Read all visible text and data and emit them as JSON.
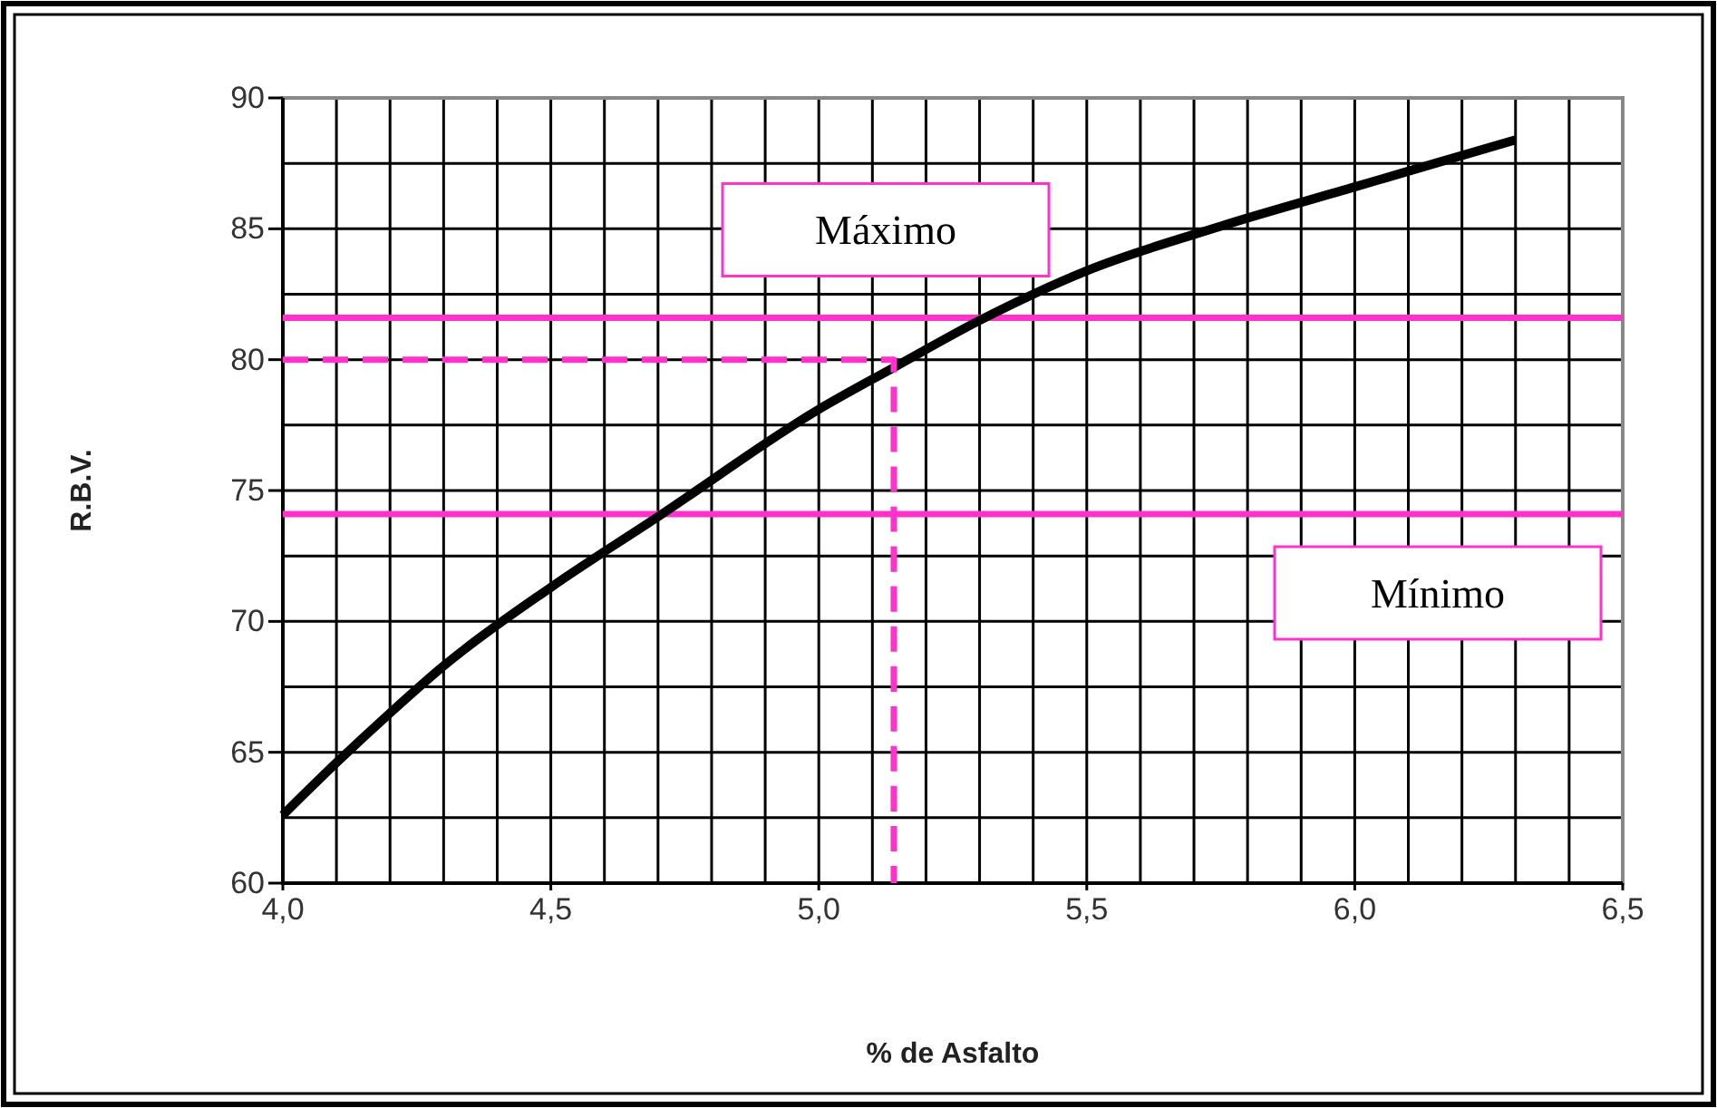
{
  "chart_data": {
    "type": "line",
    "xlabel": "% de Asfalto",
    "ylabel": "R.B.V.",
    "xlim": [
      4.0,
      6.5
    ],
    "ylim": [
      60,
      90
    ],
    "xticks": [
      {
        "value": 4.0,
        "label": "4,0"
      },
      {
        "value": 4.1,
        "label": null
      },
      {
        "value": 4.2,
        "label": null
      },
      {
        "value": 4.3,
        "label": null
      },
      {
        "value": 4.4,
        "label": null
      },
      {
        "value": 4.5,
        "label": "4,5"
      },
      {
        "value": 4.6,
        "label": null
      },
      {
        "value": 4.7,
        "label": null
      },
      {
        "value": 4.8,
        "label": null
      },
      {
        "value": 4.9,
        "label": null
      },
      {
        "value": 5.0,
        "label": "5,0"
      },
      {
        "value": 5.1,
        "label": null
      },
      {
        "value": 5.2,
        "label": null
      },
      {
        "value": 5.3,
        "label": null
      },
      {
        "value": 5.4,
        "label": null
      },
      {
        "value": 5.5,
        "label": "5,5"
      },
      {
        "value": 5.6,
        "label": null
      },
      {
        "value": 5.7,
        "label": null
      },
      {
        "value": 5.8,
        "label": null
      },
      {
        "value": 5.9,
        "label": null
      },
      {
        "value": 6.0,
        "label": "6,0"
      },
      {
        "value": 6.1,
        "label": null
      },
      {
        "value": 6.2,
        "label": null
      },
      {
        "value": 6.3,
        "label": null
      },
      {
        "value": 6.4,
        "label": null
      },
      {
        "value": 6.5,
        "label": "6,5"
      }
    ],
    "yticks": [
      60,
      {
        "value": 62.5,
        "label": null
      },
      65,
      {
        "value": 67.5,
        "label": null
      },
      70,
      {
        "value": 72.5,
        "label": null
      },
      75,
      {
        "value": 77.5,
        "label": null
      },
      80,
      {
        "value": 82.5,
        "label": null
      },
      85,
      {
        "value": 87.5,
        "label": null
      },
      90
    ],
    "grid": true,
    "marker": "none",
    "series": [
      {
        "color": "#000000",
        "line_style": "solid",
        "x": [
          4.0,
          4.1,
          4.2,
          4.3,
          4.5,
          4.7,
          5.0,
          5.14,
          5.3,
          5.5,
          5.75,
          6.0,
          6.3
        ],
        "values": [
          62.6,
          64.6,
          66.5,
          68.3,
          71.3,
          74.0,
          78.1,
          79.7,
          81.5,
          83.4,
          85.1,
          86.6,
          88.4
        ]
      },
      {
        "color": "#ff33cc",
        "line_style": "dashed",
        "x": [
          4.0,
          5.14,
          5.14
        ],
        "values": [
          80,
          80,
          60
        ]
      }
    ],
    "ref_lines": [
      {
        "axis": "y",
        "value": 81.6,
        "label": "Máximo",
        "color": "#ff33cc"
      },
      {
        "axis": "y",
        "value": 74.1,
        "label": "Mínimo",
        "color": "#ff33cc"
      }
    ]
  }
}
